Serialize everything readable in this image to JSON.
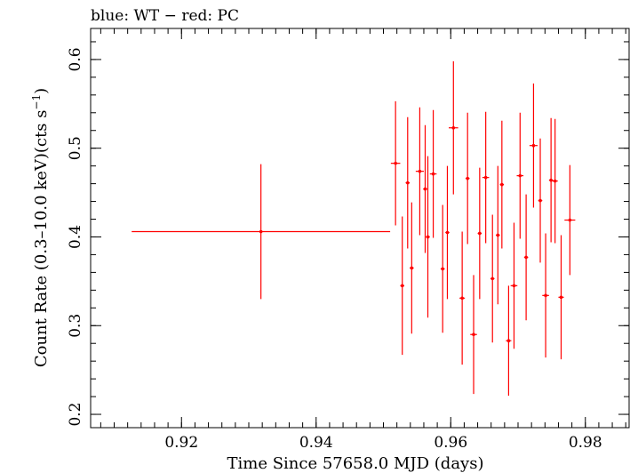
{
  "chart_data": {
    "type": "scatter",
    "title": "blue: WT − red: PC",
    "xlabel": "Time Since 57658.0 MJD (days)",
    "ylabel_main": "Count Rate (0.3–10.0 keV)(cts s",
    "ylabel_sup": "−1",
    "ylabel_tail": ")",
    "xlim": [
      0.9065,
      0.9865
    ],
    "ylim": [
      0.185,
      0.635
    ],
    "grid": false,
    "legend": "none",
    "x_ticks": [
      {
        "value": 0.92,
        "label": "0.92"
      },
      {
        "value": 0.94,
        "label": "0.94"
      },
      {
        "value": 0.96,
        "label": "0.96"
      },
      {
        "value": 0.98,
        "label": "0.98"
      }
    ],
    "x_minor_step": 0.002,
    "y_ticks": [
      {
        "value": 0.2,
        "label": "0.2"
      },
      {
        "value": 0.3,
        "label": "0.3"
      },
      {
        "value": 0.4,
        "label": "0.4"
      },
      {
        "value": 0.5,
        "label": "0.5"
      },
      {
        "value": 0.6,
        "label": "0.6"
      }
    ],
    "y_minor_step": 0.02,
    "series": [
      {
        "name": "PC",
        "color": "#ff0000",
        "points": [
          {
            "x": 0.9318,
            "y": 0.406,
            "xerr": 0.0192,
            "yerr": 0.076
          },
          {
            "x": 0.9518,
            "y": 0.483,
            "xerr": 0.0007,
            "yerr": 0.07
          },
          {
            "x": 0.9528,
            "y": 0.345,
            "xerr": 0.0003,
            "yerr": 0.078
          },
          {
            "x": 0.9536,
            "y": 0.461,
            "xerr": 0.0003,
            "yerr": 0.074
          },
          {
            "x": 0.9542,
            "y": 0.365,
            "xerr": 0.0003,
            "yerr": 0.074
          },
          {
            "x": 0.9554,
            "y": 0.474,
            "xerr": 0.0006,
            "yerr": 0.072
          },
          {
            "x": 0.9562,
            "y": 0.454,
            "xerr": 0.0003,
            "yerr": 0.072
          },
          {
            "x": 0.9566,
            "y": 0.4,
            "xerr": 0.0003,
            "yerr": 0.091
          },
          {
            "x": 0.9574,
            "y": 0.471,
            "xerr": 0.0005,
            "yerr": 0.072
          },
          {
            "x": 0.9588,
            "y": 0.364,
            "xerr": 0.0003,
            "yerr": 0.072
          },
          {
            "x": 0.9595,
            "y": 0.405,
            "xerr": 0.0003,
            "yerr": 0.075
          },
          {
            "x": 0.9604,
            "y": 0.523,
            "xerr": 0.0007,
            "yerr": 0.075
          },
          {
            "x": 0.9617,
            "y": 0.331,
            "xerr": 0.0004,
            "yerr": 0.075
          },
          {
            "x": 0.9625,
            "y": 0.466,
            "xerr": 0.0003,
            "yerr": 0.074
          },
          {
            "x": 0.9634,
            "y": 0.29,
            "xerr": 0.0005,
            "yerr": 0.067
          },
          {
            "x": 0.9643,
            "y": 0.404,
            "xerr": 0.0003,
            "yerr": 0.074
          },
          {
            "x": 0.9652,
            "y": 0.467,
            "xerr": 0.0005,
            "yerr": 0.074
          },
          {
            "x": 0.9662,
            "y": 0.353,
            "xerr": 0.0003,
            "yerr": 0.072
          },
          {
            "x": 0.967,
            "y": 0.402,
            "xerr": 0.0003,
            "yerr": 0.078
          },
          {
            "x": 0.9676,
            "y": 0.459,
            "xerr": 0.0003,
            "yerr": 0.072
          },
          {
            "x": 0.9686,
            "y": 0.283,
            "xerr": 0.0004,
            "yerr": 0.062
          },
          {
            "x": 0.9694,
            "y": 0.345,
            "xerr": 0.0005,
            "yerr": 0.071
          },
          {
            "x": 0.9703,
            "y": 0.469,
            "xerr": 0.0005,
            "yerr": 0.071
          },
          {
            "x": 0.9712,
            "y": 0.377,
            "xerr": 0.0003,
            "yerr": 0.071
          },
          {
            "x": 0.9723,
            "y": 0.503,
            "xerr": 0.0006,
            "yerr": 0.07
          },
          {
            "x": 0.9733,
            "y": 0.441,
            "xerr": 0.0003,
            "yerr": 0.07
          },
          {
            "x": 0.9741,
            "y": 0.334,
            "xerr": 0.0005,
            "yerr": 0.07
          },
          {
            "x": 0.9749,
            "y": 0.464,
            "xerr": 0.0003,
            "yerr": 0.07
          },
          {
            "x": 0.9755,
            "y": 0.463,
            "xerr": 0.0004,
            "yerr": 0.07
          },
          {
            "x": 0.9764,
            "y": 0.332,
            "xerr": 0.0004,
            "yerr": 0.07
          },
          {
            "x": 0.9777,
            "y": 0.419,
            "xerr": 0.0008,
            "yerr": 0.062
          }
        ]
      }
    ]
  }
}
